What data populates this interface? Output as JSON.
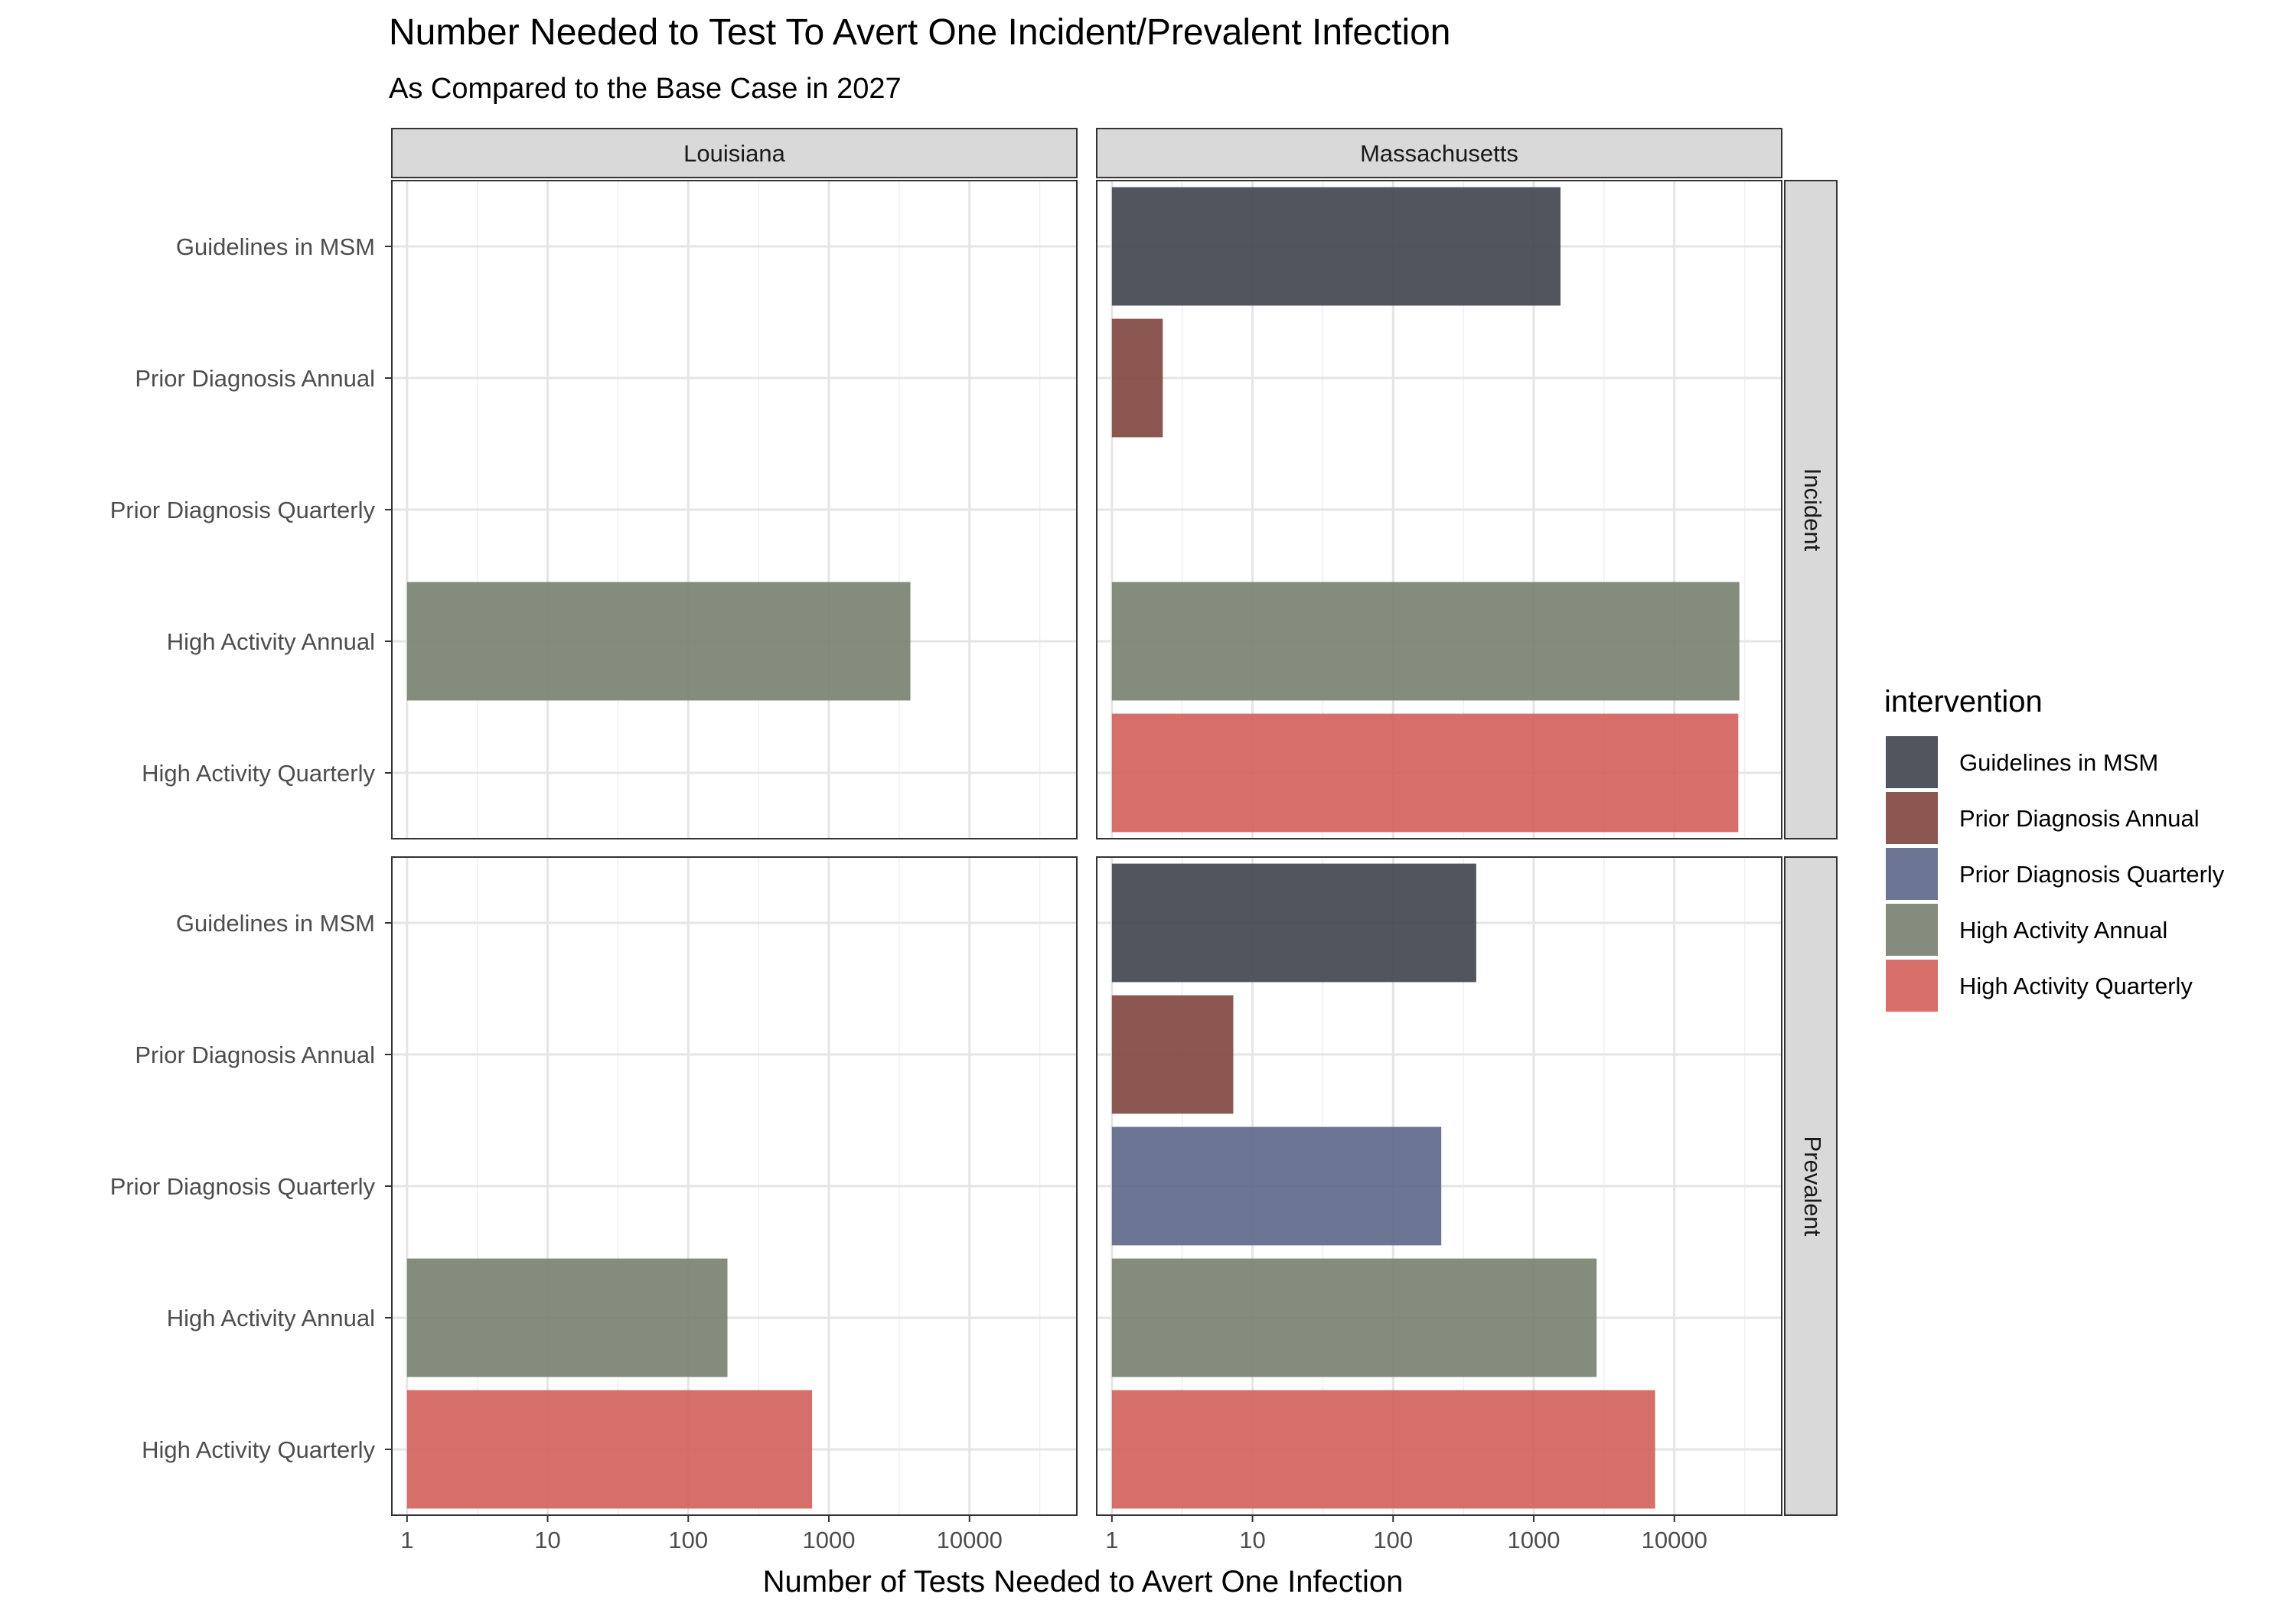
{
  "chart_data": {
    "type": "bar",
    "orientation": "horizontal",
    "title": "Number Needed to Test To Avert One Incident/Prevalent Infection",
    "subtitle": "As Compared to the Base Case in 2027",
    "xlabel": "Number of Tests Needed to Avert One Infection",
    "x_scale": "log10",
    "xlim": [
      0.78,
      58000
    ],
    "x_ticks": [
      1,
      10,
      100,
      1000,
      10000
    ],
    "x_tick_labels": [
      "1",
      "10",
      "100",
      "1000",
      "10000"
    ],
    "grid": true,
    "columns": [
      "Louisiana",
      "Massachusetts"
    ],
    "rows": [
      "Incident",
      "Prevalent"
    ],
    "categories": [
      "Guidelines in MSM",
      "Prior Diagnosis Annual",
      "Prior Diagnosis Quarterly",
      "High Activity Annual",
      "High Activity Quarterly"
    ],
    "legend": {
      "title": "intervention",
      "position": "right",
      "entries": [
        {
          "label": "Guidelines in MSM",
          "color": "#3d434d"
        },
        {
          "label": "Prior Diagnosis Annual",
          "color": "#7f453e"
        },
        {
          "label": "Prior Diagnosis Quarterly",
          "color": "#5c6688"
        },
        {
          "label": "High Activity Annual",
          "color": "#77806f"
        },
        {
          "label": "High Activity Quarterly",
          "color": "#d15e59"
        }
      ]
    },
    "panels": [
      {
        "column": "Louisiana",
        "row": "Incident",
        "values": [
          null,
          null,
          null,
          3800,
          null
        ]
      },
      {
        "column": "Massachusetts",
        "row": "Incident",
        "values": [
          1550,
          2.3,
          null,
          29000,
          28500
        ]
      },
      {
        "column": "Louisiana",
        "row": "Prevalent",
        "values": [
          null,
          null,
          null,
          190,
          760
        ]
      },
      {
        "column": "Massachusetts",
        "row": "Prevalent",
        "values": [
          390,
          7.3,
          220,
          2800,
          7300
        ]
      }
    ]
  }
}
